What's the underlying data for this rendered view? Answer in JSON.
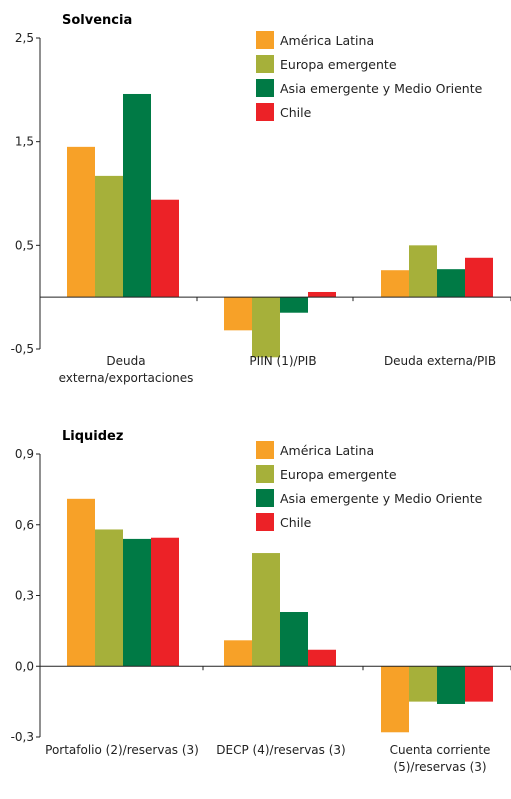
{
  "chart_data": [
    {
      "type": "bar",
      "title": "Solvencia",
      "xlabel": "",
      "ylabel": "",
      "ylim": [
        -0.5,
        2.5
      ],
      "yticks": [
        "-0,5",
        "0,5",
        "1,5",
        "2,5"
      ],
      "categories": [
        "Deuda externa/exportaciones",
        "PIIN (1)/PIB",
        "Deuda externa/PIB"
      ],
      "series": [
        {
          "name": "América Latina",
          "color": "#F7A128",
          "values": [
            1.45,
            -0.32,
            0.26
          ]
        },
        {
          "name": "Europa emergente",
          "color": "#A6B03A",
          "values": [
            1.17,
            -0.58,
            0.5
          ]
        },
        {
          "name": "Asia emergente y Medio Oriente",
          "color": "#007A45",
          "values": [
            1.96,
            -0.15,
            0.27
          ]
        },
        {
          "name": "Chile",
          "color": "#EC2227",
          "values": [
            0.94,
            0.05,
            0.38
          ]
        }
      ],
      "legend": "top-right",
      "grid": false
    },
    {
      "type": "bar",
      "title": "Liquidez",
      "xlabel": "",
      "ylabel": "",
      "ylim": [
        -0.3,
        0.9
      ],
      "yticks": [
        "-0,3",
        "0,0",
        "0,3",
        "0,6",
        "0,9"
      ],
      "categories": [
        "Portafolio (2)/reservas (3)",
        "DECP (4)/reservas (3)",
        "Cuenta corriente (5)/reservas (3)"
      ],
      "series": [
        {
          "name": "América Latina",
          "color": "#F7A128",
          "values": [
            0.71,
            0.11,
            -0.28
          ]
        },
        {
          "name": "Europa emergente",
          "color": "#A6B03A",
          "values": [
            0.58,
            0.48,
            -0.15
          ]
        },
        {
          "name": "Asia emergente y Medio Oriente",
          "color": "#007A45",
          "values": [
            0.54,
            0.23,
            -0.16
          ]
        },
        {
          "name": "Chile",
          "color": "#EC2227",
          "values": [
            0.545,
            0.07,
            -0.15
          ]
        }
      ],
      "legend": "top-right",
      "grid": false
    }
  ]
}
